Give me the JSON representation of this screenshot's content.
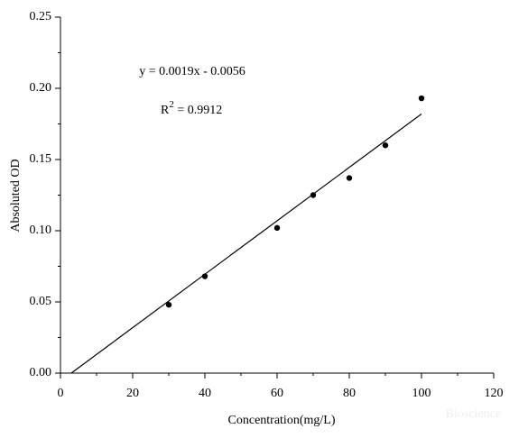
{
  "chart_data": {
    "type": "scatter",
    "x_label": "Concentration(mg/L)",
    "y_label": "Absoluted OD",
    "annotations": {
      "equation": "y = 0.0019x - 0.0056",
      "r_symbol": "R",
      "r_power": "2",
      "r_value": " = 0.9912"
    },
    "watermark": "Bioscience",
    "series": [
      {
        "mark": "point",
        "color": "#000000",
        "x": [
          30,
          40,
          60,
          70,
          80,
          90,
          100
        ],
        "values": [
          0.048,
          0.068,
          0.102,
          0.125,
          0.137,
          0.16,
          0.193
        ]
      },
      {
        "mark": "line",
        "color": "#000000",
        "x": [
          3,
          100
        ],
        "values": [
          0,
          0.182
        ]
      }
    ],
    "xlim": [
      0,
      120
    ],
    "xticks": [
      0,
      20,
      40,
      60,
      80,
      100,
      120
    ],
    "ylim": [
      0,
      0.25
    ],
    "yticks": [
      {
        "value": 0,
        "label": "0.00"
      },
      0.05,
      {
        "value": 0.1,
        "label": "0.10"
      },
      0.15,
      {
        "value": 0.2,
        "label": "0.20"
      },
      0.25
    ]
  }
}
